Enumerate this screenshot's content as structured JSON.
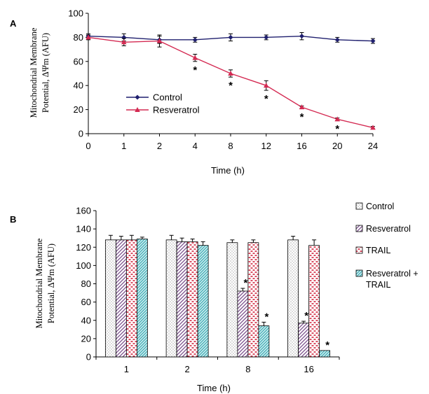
{
  "panel_a_label": "A",
  "panel_b_label": "B",
  "significance_marker": "*",
  "colors": {
    "control_line": "#1f1f6e",
    "resveratrol_line": "#d42a52",
    "bar_control": "#e8e8e8",
    "bar_resveratrol": "#7a4f8c",
    "bar_trail": "#d0213a",
    "bar_combo": "#3ba8b0"
  },
  "chart_data": [
    {
      "type": "line",
      "xlabel": "Time (h)",
      "ylabel_line1": "Mitochondrial Membrane",
      "ylabel_line2": "Potential, ΔΨm (AFU)",
      "categories": [
        "0",
        "1",
        "2",
        "4",
        "8",
        "12",
        "16",
        "20",
        "24"
      ],
      "ylim": [
        0,
        100
      ],
      "yticks": [
        0,
        20,
        40,
        60,
        80,
        100
      ],
      "grid": false,
      "legend_position": "center-left",
      "series": [
        {
          "name": "Control",
          "marker": "diamond",
          "values": [
            81,
            80,
            78,
            78,
            80,
            80,
            81,
            78,
            77
          ],
          "errors": [
            2,
            3,
            3,
            2,
            3,
            2,
            3,
            2,
            2
          ]
        },
        {
          "name": "Resveratrol",
          "marker": "triangle",
          "values": [
            80,
            76,
            77,
            63,
            50,
            40,
            22,
            12,
            5
          ],
          "errors": [
            2,
            3,
            5,
            3,
            3,
            4,
            1,
            1,
            1
          ]
        }
      ],
      "significant": [
        {
          "series": 1,
          "index": 3
        },
        {
          "series": 1,
          "index": 4
        },
        {
          "series": 1,
          "index": 5
        },
        {
          "series": 1,
          "index": 6
        },
        {
          "series": 1,
          "index": 7
        }
      ]
    },
    {
      "type": "bar",
      "xlabel": "Time (h)",
      "ylabel_line1": "Mitochondrial Membrane",
      "ylabel_line2": "Potential, ΔΨm (AFU)",
      "categories": [
        "1",
        "2",
        "8",
        "16"
      ],
      "ylim": [
        0,
        160
      ],
      "yticks": [
        0,
        20,
        40,
        60,
        80,
        100,
        120,
        140,
        160
      ],
      "grid": false,
      "legend_position": "right",
      "series": [
        {
          "name": "Control",
          "pattern": "dots",
          "values": [
            128,
            128,
            125,
            128
          ],
          "errors": [
            5,
            5,
            3,
            4
          ]
        },
        {
          "name": "Resveratrol",
          "pattern": "diagonal",
          "values": [
            128,
            126,
            72,
            37
          ],
          "errors": [
            4,
            4,
            3,
            2
          ]
        },
        {
          "name": "TRAIL",
          "pattern": "dashes",
          "values": [
            128,
            126,
            125,
            122
          ],
          "errors": [
            5,
            3,
            3,
            6
          ]
        },
        {
          "name_line1": "Resveratrol +",
          "name_line2": "TRAIL",
          "pattern": "crosshatch",
          "values": [
            129,
            122,
            34,
            7
          ],
          "errors": [
            2,
            4,
            4,
            0
          ]
        }
      ],
      "significant": [
        {
          "series": 1,
          "index": 2
        },
        {
          "series": 3,
          "index": 2
        },
        {
          "series": 1,
          "index": 3
        },
        {
          "series": 3,
          "index": 3
        }
      ]
    }
  ]
}
